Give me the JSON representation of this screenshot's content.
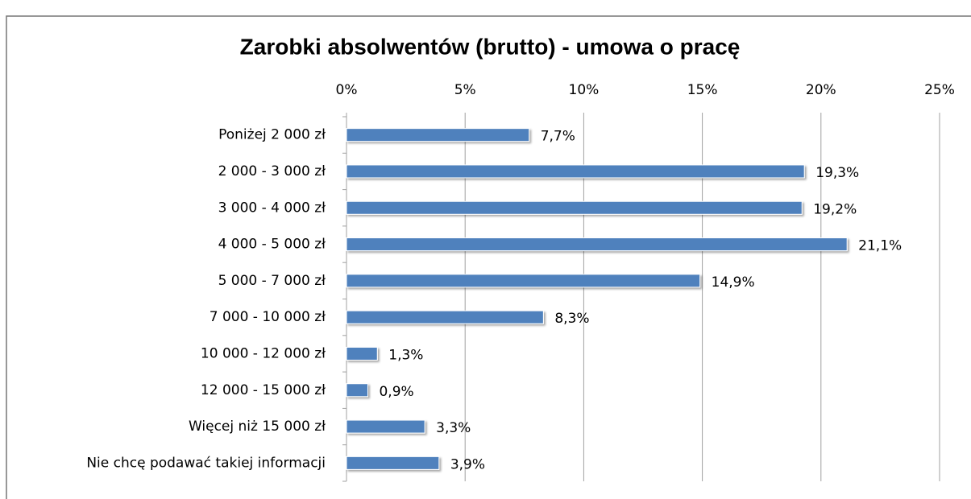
{
  "chart_data": {
    "type": "bar",
    "orientation": "horizontal",
    "title": "Zarobki absolwentów (brutto) - umowa o pracę",
    "categories": [
      "Poniżej 2 000 zł",
      "2 000 - 3 000 zł",
      "3 000 - 4 000 zł",
      "4 000 - 5 000 zł",
      "5 000 - 7 000 zł",
      "7 000 - 10 000 zł",
      "10 000 - 12 000 zł",
      "12 000 - 15 000 zł",
      "Więcej niż 15 000 zł",
      "Nie chcę podawać takiej informacji"
    ],
    "values": [
      7.7,
      19.3,
      19.2,
      21.1,
      14.9,
      8.3,
      1.3,
      0.9,
      3.3,
      3.9
    ],
    "value_labels": [
      "7,7%",
      "19,3%",
      "19,2%",
      "21,1%",
      "14,9%",
      "8,3%",
      "1,3%",
      "0,9%",
      "3,3%",
      "3,9%"
    ],
    "color": "#4f81bd",
    "xlim": [
      0,
      25
    ],
    "xticks": [
      {
        "value": 0,
        "label": "0%"
      },
      {
        "value": 5,
        "label": "5%"
      },
      {
        "value": 10,
        "label": "10%"
      },
      {
        "value": 15,
        "label": "15%"
      },
      {
        "value": 20,
        "label": "20%"
      },
      {
        "value": 25,
        "label": "25%"
      }
    ],
    "grid": true
  }
}
